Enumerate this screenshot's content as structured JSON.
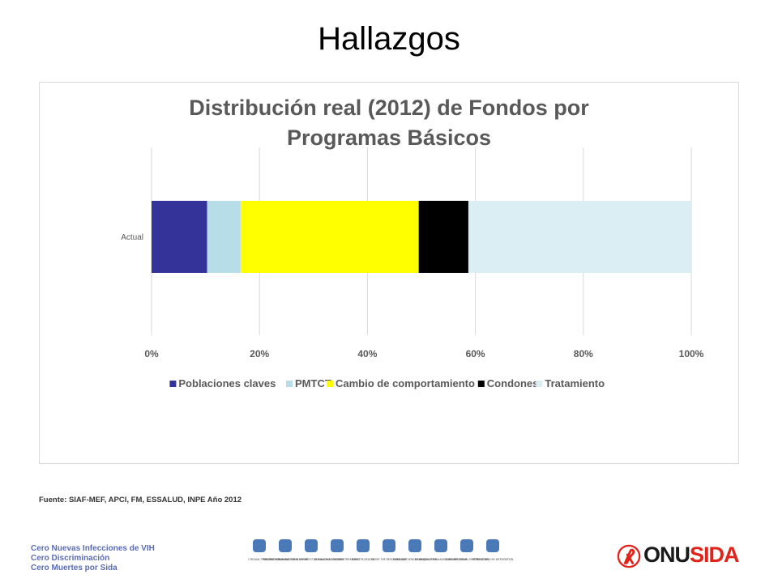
{
  "slide": {
    "title": "Hallazgos",
    "source": "Fuente: SIAF-MEF, APCI, FM, ESSALUD, INPE Año 2012",
    "tagline": [
      "Cero Nuevas Infecciones de VIH",
      "Cero Discriminación",
      "Cero Muertes por Sida"
    ],
    "logo": {
      "part1": "ONU",
      "part2": "SIDA",
      "icon": "red-ribbon-icon",
      "color1": "#1a1a1a",
      "color2": "#e2231a"
    },
    "icon_strip": [
      {
        "icon": "sexual-transmission-icon",
        "caption": "REDUCE SEXUAL TRANSMISSION"
      },
      {
        "icon": "syringe-icon",
        "caption": "PREVENT HIV AMONG DRUG USERS"
      },
      {
        "icon": "mother-child-icon",
        "caption": "ELIMINATE NEW HIV INFECTIONS AMONG CHILDREN"
      },
      {
        "icon": "pill-icon",
        "caption": "15 MILLION ACCESSING TREATMENT"
      },
      {
        "icon": "lungs-icon",
        "caption": "AVOID TB DEATHS"
      },
      {
        "icon": "piggy-bank-icon",
        "caption": "CLOSE THE RESOURCE GAP"
      },
      {
        "icon": "gender-icon",
        "caption": "ELIMINATE GENDER INEQUALITIES"
      },
      {
        "icon": "scales-icon",
        "caption": "ELIMINATE STIGMA AND DISCRIMINATION"
      },
      {
        "icon": "airplane-icon",
        "caption": "ELIMINATE TRAVEL RESTRICTIONS"
      },
      {
        "icon": "handshake-icon",
        "caption": "STRENGTHEN HIV INTEGRATION"
      }
    ]
  },
  "chart_data": {
    "type": "bar",
    "orientation": "horizontal",
    "stacked": "percent",
    "title": "Distribución real (2012) de Fondos por Programas Básicos",
    "categories": [
      "Actual"
    ],
    "series": [
      {
        "name": "Poblaciones claves",
        "values": [
          10.3
        ],
        "color": "#333399"
      },
      {
        "name": "PMTCT",
        "values": [
          6.2
        ],
        "color": "#b7dee8"
      },
      {
        "name": "Cambio de comportamiento",
        "values": [
          33.0
        ],
        "color": "#ffff00"
      },
      {
        "name": "Condones",
        "values": [
          9.2
        ],
        "color": "#000000"
      },
      {
        "name": "Tratamiento",
        "values": [
          41.3
        ],
        "color": "#daeef3"
      }
    ],
    "x_ticks": [
      "0%",
      "20%",
      "40%",
      "60%",
      "80%",
      "100%"
    ],
    "xlim": [
      0,
      100
    ],
    "grid": true,
    "legend_position": "bottom"
  }
}
